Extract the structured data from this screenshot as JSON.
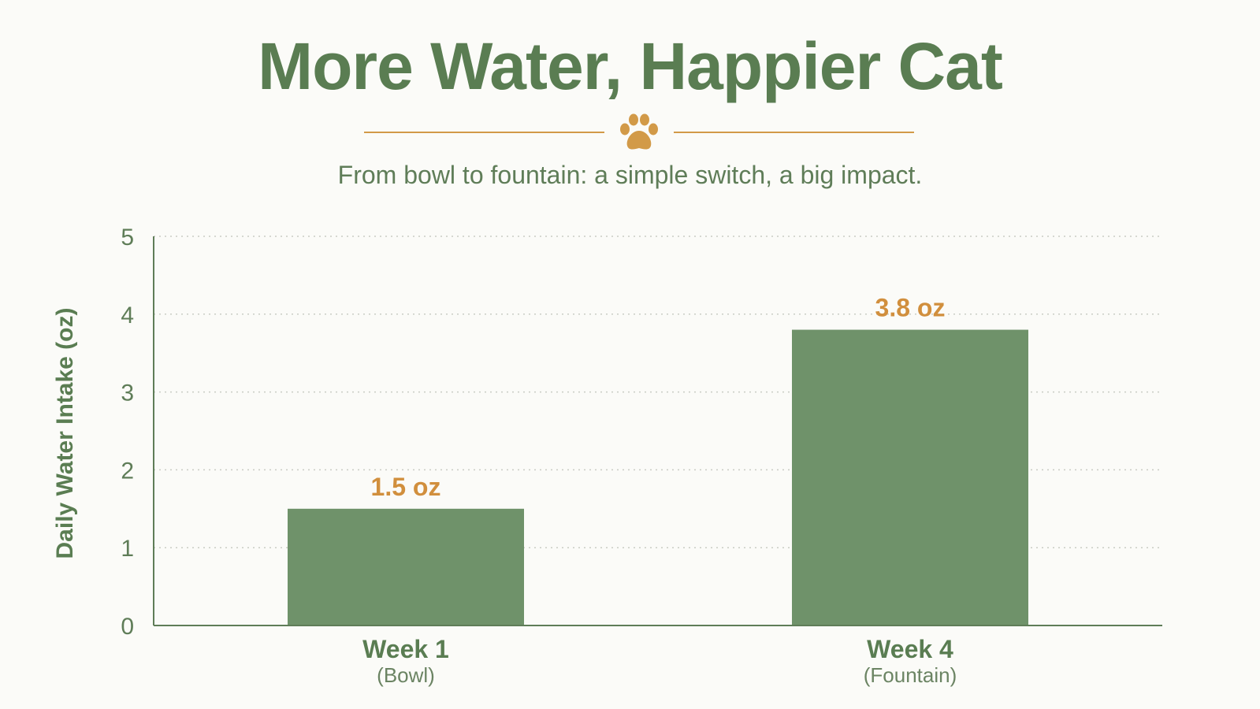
{
  "chart_data": {
    "type": "bar",
    "title": "More Water, Happier Cat",
    "subtitle": "From bowl to fountain: a simple switch, a big impact.",
    "ylabel": "Daily Water Intake (oz)",
    "xlabel": "",
    "ylim": [
      0,
      5
    ],
    "yticks": [
      0,
      1,
      2,
      3,
      4,
      5
    ],
    "grid": true,
    "categories": [
      "Week 1",
      "Week 4"
    ],
    "category_sublabels": [
      "(Bowl)",
      "(Fountain)"
    ],
    "values": [
      1.5,
      3.8
    ],
    "data_labels": [
      "1.5 oz",
      "3.8 oz"
    ],
    "colors": {
      "bar": "#6f926a",
      "title": "#5a7d52",
      "accent": "#d29a48",
      "data_label": "#d18f3d"
    }
  },
  "decoration": {
    "icon": "paw-print-icon"
  }
}
